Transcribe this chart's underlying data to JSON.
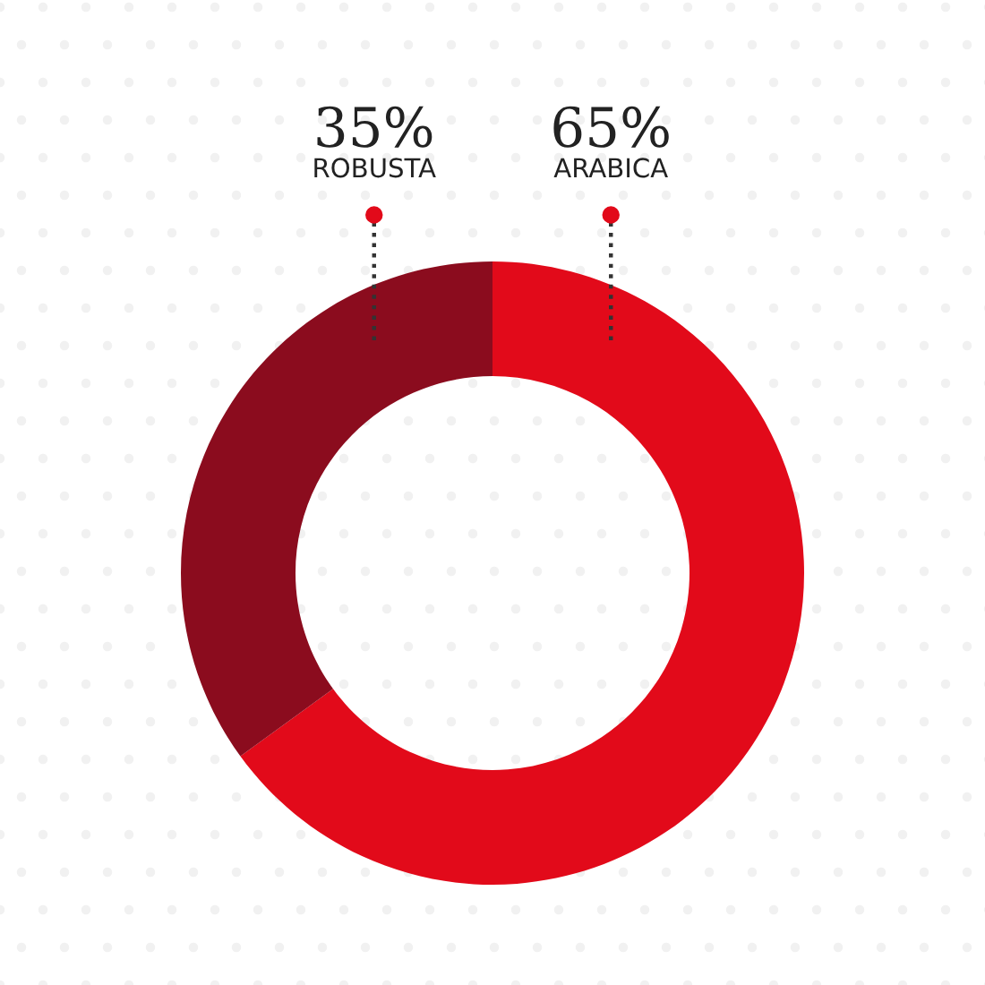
{
  "chart_data": {
    "type": "donut",
    "categories": [
      "ARABICA",
      "ROBUSTA"
    ],
    "values": [
      65,
      35
    ],
    "colors": [
      "#e20a1a",
      "#8b0c1e"
    ],
    "value_labels": [
      "65%",
      "35%"
    ]
  }
}
